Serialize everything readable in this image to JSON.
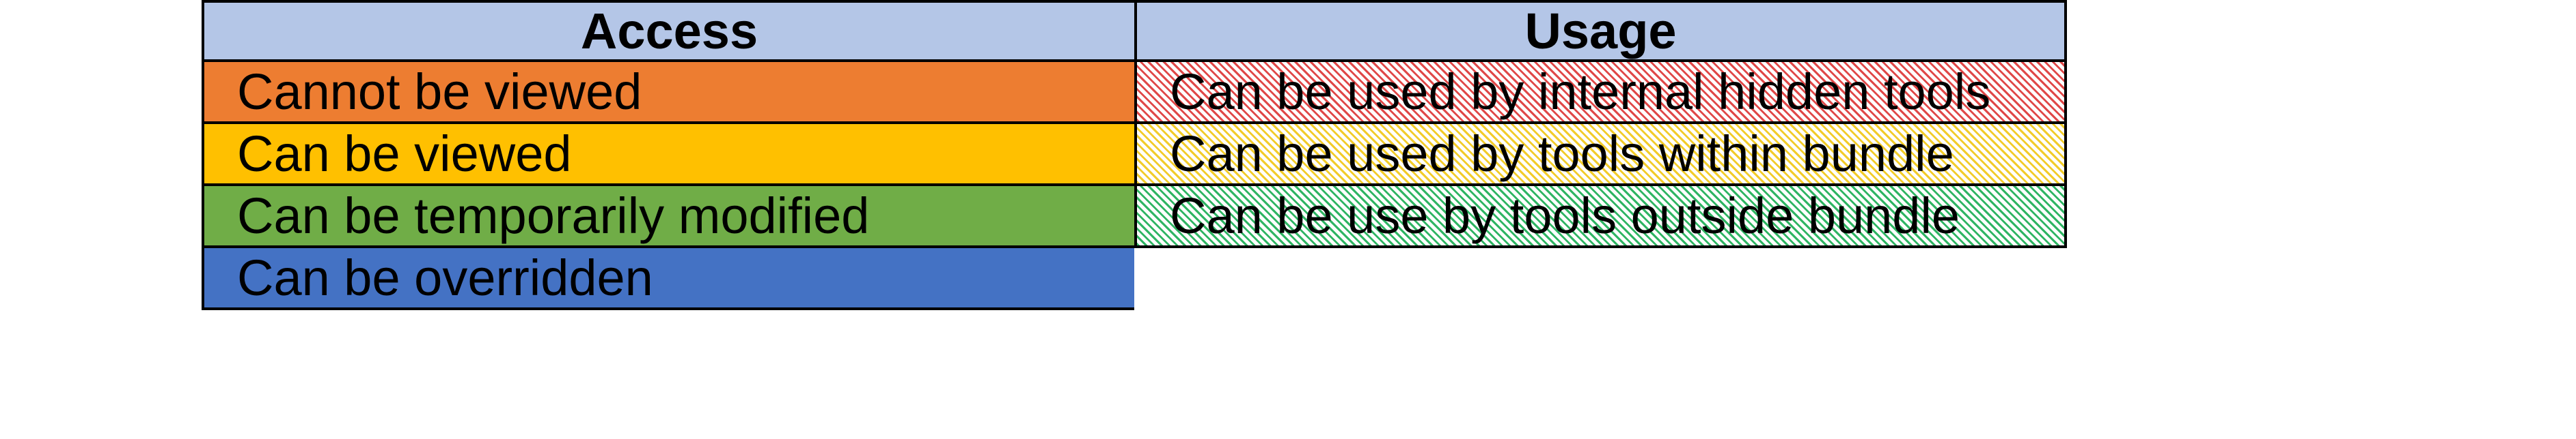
{
  "headers": {
    "access": "Access",
    "usage": "Usage"
  },
  "access": [
    {
      "label": "Cannot be viewed",
      "color": "#ed7d31"
    },
    {
      "label": "Can be viewed",
      "color": "#ffc000"
    },
    {
      "label": "Can be temporarily modified",
      "color": "#70ad47"
    },
    {
      "label": "Can be overridden",
      "color": "#4472c4"
    }
  ],
  "usage": [
    {
      "label": "Can be used by internal hidden tools",
      "color": "#e04848",
      "pattern": "hatched"
    },
    {
      "label": "Can be used by tools within bundle",
      "color": "#f2cc2a",
      "pattern": "hatched"
    },
    {
      "label": "Can be use by tools outside bundle",
      "color": "#2fb563",
      "pattern": "hatched"
    }
  ]
}
